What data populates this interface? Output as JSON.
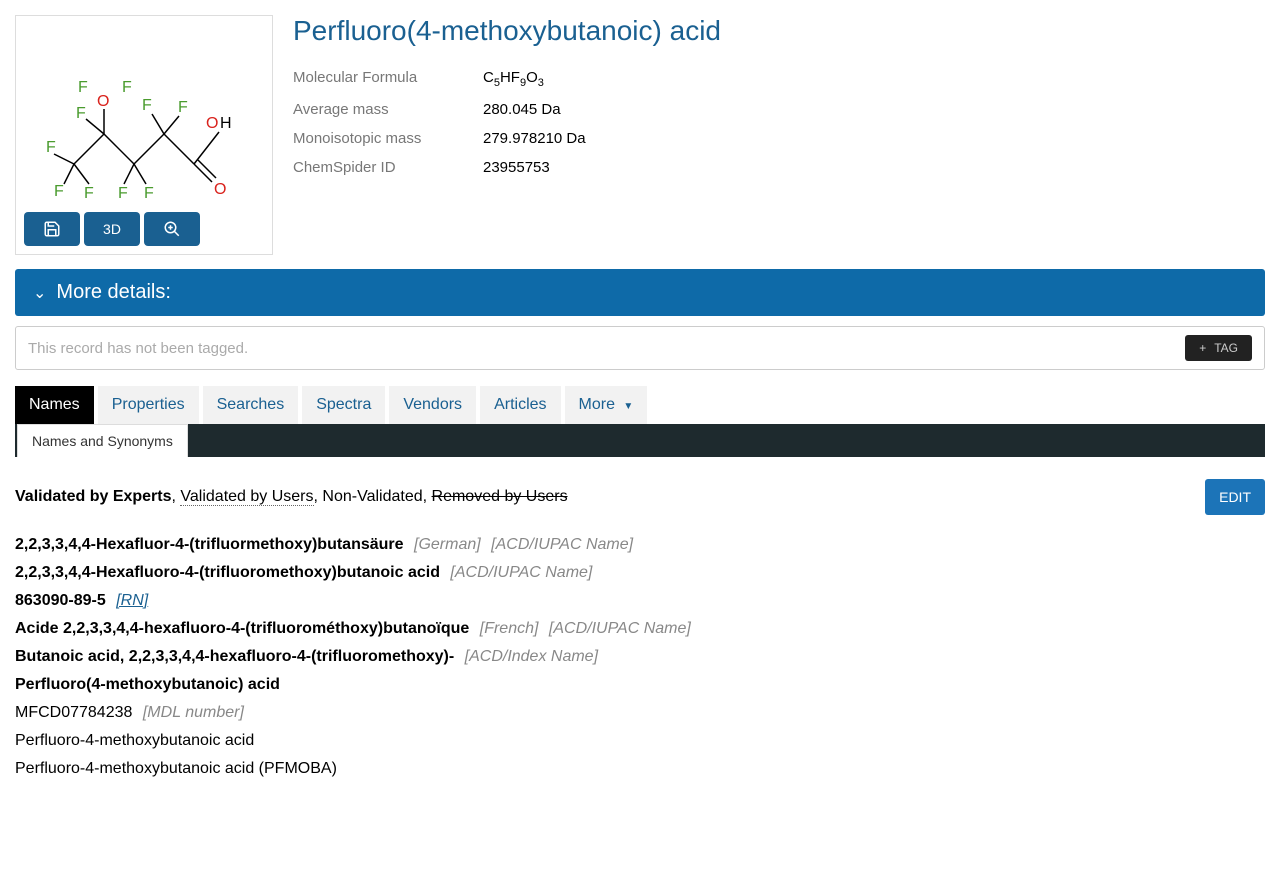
{
  "compound": {
    "title": "Perfluoro(4-methoxybutanoic) acid",
    "props": [
      {
        "label": "Molecular Formula",
        "value_html": "C<sub>5</sub>HF<sub>9</sub>O<sub>3</sub>"
      },
      {
        "label": "Average mass",
        "value": "280.045 Da"
      },
      {
        "label": "Monoisotopic mass",
        "value": "279.978210 Da"
      },
      {
        "label": "ChemSpider ID",
        "value": "23955753"
      }
    ]
  },
  "structure": {
    "atoms": {
      "F_color": "#4a9b2e",
      "O_color": "#d9221c",
      "C_color": "#000000"
    },
    "buttons": {
      "save_icon": "save",
      "threeD": "3D",
      "zoom_icon": "zoom"
    }
  },
  "details_panel": {
    "title": "More details:"
  },
  "tag_bar": {
    "message": "This record has not been tagged.",
    "button": "TAG"
  },
  "tabs": [
    {
      "label": "Names",
      "active": true
    },
    {
      "label": "Properties"
    },
    {
      "label": "Searches"
    },
    {
      "label": "Spectra"
    },
    {
      "label": "Vendors"
    },
    {
      "label": "Articles"
    },
    {
      "label": "More",
      "dropdown": true
    }
  ],
  "subtab": "Names and Synonyms",
  "legend": {
    "experts": "Validated by Experts",
    "users": "Validated by Users",
    "nonval": "Non-Validated",
    "removed": "Removed by Users",
    "edit": "EDIT"
  },
  "names": [
    {
      "text": "2,2,3,3,4,4-Hexafluor-4-(trifluormethoxy)butansäure",
      "bold": true,
      "annots": [
        "[German]",
        "[ACD/IUPAC Name]"
      ]
    },
    {
      "text": "2,2,3,3,4,4-Hexafluoro-4-(trifluoromethoxy)butanoic acid",
      "bold": true,
      "annots": [
        "[ACD/IUPAC Name]"
      ]
    },
    {
      "text": "863090-89-5",
      "bold": true,
      "annots_linked": [
        "[RN]"
      ]
    },
    {
      "text": "Acide 2,2,3,3,4,4-hexafluoro-4-(trifluorométhoxy)butanoïque",
      "bold": true,
      "annots": [
        "[French]",
        "[ACD/IUPAC Name]"
      ]
    },
    {
      "text": "Butanoic acid, 2,2,3,3,4,4-hexafluoro-4-(trifluoromethoxy)-",
      "bold": true,
      "annots": [
        "[ACD/Index Name]"
      ]
    },
    {
      "text": "Perfluoro(4-methoxybutanoic) acid",
      "bold": true
    },
    {
      "text": "MFCD07784238",
      "annots": [
        "[MDL number]"
      ]
    },
    {
      "text": "Perfluoro-4-methoxybutanoic acid"
    },
    {
      "text": "Perfluoro-4-methoxybutanoic acid (PFMOBA)"
    }
  ]
}
